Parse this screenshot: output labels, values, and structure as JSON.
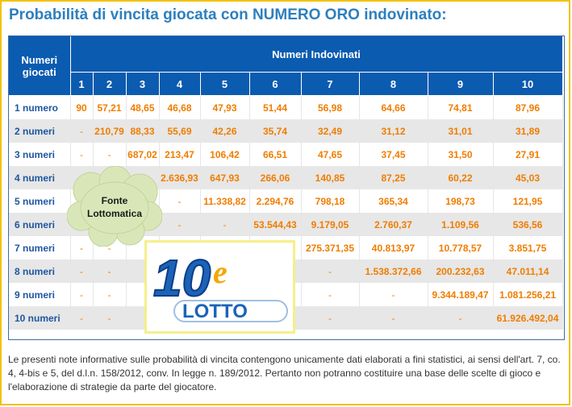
{
  "title": "Probabilità di vincita giocata con NUMERO ORO indovinato:",
  "table": {
    "header_left": [
      "Numeri",
      "giocati"
    ],
    "header_group": "Numeri Indovinati",
    "columns": [
      "1",
      "2",
      "3",
      "4",
      "5",
      "6",
      "7",
      "8",
      "9",
      "10"
    ],
    "rows": [
      {
        "label": "1 numero",
        "cells": [
          "90",
          "57,21",
          "48,65",
          "46,68",
          "47,93",
          "51,44",
          "56,98",
          "64,66",
          "74,81",
          "87,96"
        ]
      },
      {
        "label": "2 numeri",
        "cells": [
          "-",
          "210,79",
          "88,33",
          "55,69",
          "42,26",
          "35,74",
          "32,49",
          "31,12",
          "31,01",
          "31,89"
        ]
      },
      {
        "label": "3 numeri",
        "cells": [
          "-",
          "-",
          "687,02",
          "213,47",
          "106,42",
          "66,51",
          "47,65",
          "37,45",
          "31,50",
          "27,91"
        ]
      },
      {
        "label": "4 numeri",
        "cells": [
          "",
          "",
          "",
          "2.636,93",
          "647,93",
          "266,06",
          "140,85",
          "87,25",
          "60,22",
          "45,03"
        ]
      },
      {
        "label": "5 numeri",
        "cells": [
          "",
          "",
          "",
          "-",
          "11.338,82",
          "2.294,76",
          "798,18",
          "365,34",
          "198,73",
          "121,95"
        ]
      },
      {
        "label": "6 numeri",
        "cells": [
          "",
          "",
          "",
          "-",
          "-",
          "53.544,43",
          "9.179,05",
          "2.760,37",
          "1.109,56",
          "536,56"
        ]
      },
      {
        "label": "7 numeri",
        "cells": [
          "-",
          "-",
          "",
          "",
          "",
          "",
          "275.371,35",
          "40.813,97",
          "10.778,57",
          "3.851,75"
        ]
      },
      {
        "label": "8 numeri",
        "cells": [
          "-",
          "-",
          "",
          "",
          "",
          "",
          "-",
          "1.538.372,66",
          "200.232,63",
          "47.011,14"
        ]
      },
      {
        "label": "9 numeri",
        "cells": [
          "-",
          "-",
          "",
          "",
          "",
          "",
          "-",
          "-",
          "9.344.189,47",
          "1.081.256,21"
        ]
      },
      {
        "label": "10 numeri",
        "cells": [
          "-",
          "-",
          "",
          "",
          "",
          "",
          "-",
          "-",
          "-",
          "61.926.492,04"
        ]
      }
    ]
  },
  "cloud": {
    "line1": "Fonte",
    "line2": "Lottomatica"
  },
  "logo": {
    "big": "10",
    "e": "e",
    "lotto": "LOTTO"
  },
  "note": "Le presenti note informative sulle probabilità di vincita contengono unicamente dati elaborati a fini statistici, ai sensi dell'art. 7, co. 4, 4-bis e 5, del d.l.n. 158/2012, conv. In legge n. 189/2012. Pertanto non potranno costituire una base delle scelte di gioco e l'elaborazione di strategie da parte del giocatore."
}
